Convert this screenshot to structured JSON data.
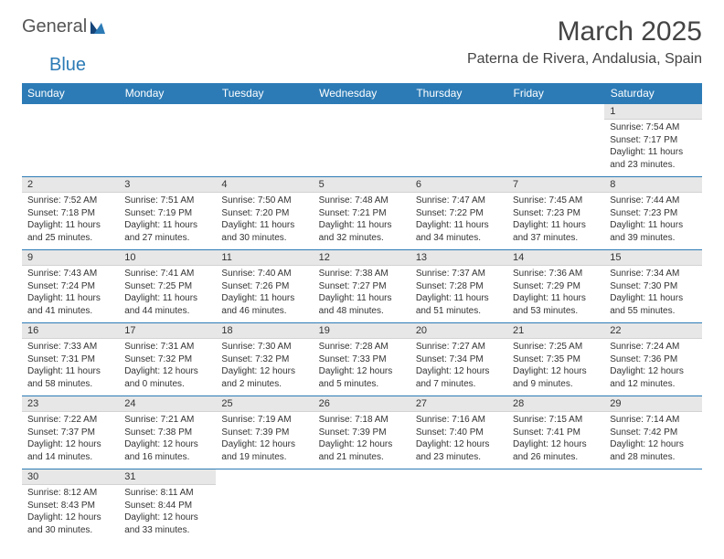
{
  "brand": {
    "name1": "General",
    "name2": "Blue"
  },
  "header": {
    "month_title": "March 2025",
    "location": "Paterna de Rivera, Andalusia, Spain"
  },
  "colors": {
    "header_bg": "#2c7bb6",
    "header_fg": "#ffffff",
    "daynum_bg": "#e7e7e7",
    "cell_border": "#2c7bb6"
  },
  "day_headers": [
    "Sunday",
    "Monday",
    "Tuesday",
    "Wednesday",
    "Thursday",
    "Friday",
    "Saturday"
  ],
  "weeks": [
    [
      null,
      null,
      null,
      null,
      null,
      null,
      {
        "n": "1",
        "sr": "Sunrise: 7:54 AM",
        "ss": "Sunset: 7:17 PM",
        "dl1": "Daylight: 11 hours",
        "dl2": "and 23 minutes."
      }
    ],
    [
      {
        "n": "2",
        "sr": "Sunrise: 7:52 AM",
        "ss": "Sunset: 7:18 PM",
        "dl1": "Daylight: 11 hours",
        "dl2": "and 25 minutes."
      },
      {
        "n": "3",
        "sr": "Sunrise: 7:51 AM",
        "ss": "Sunset: 7:19 PM",
        "dl1": "Daylight: 11 hours",
        "dl2": "and 27 minutes."
      },
      {
        "n": "4",
        "sr": "Sunrise: 7:50 AM",
        "ss": "Sunset: 7:20 PM",
        "dl1": "Daylight: 11 hours",
        "dl2": "and 30 minutes."
      },
      {
        "n": "5",
        "sr": "Sunrise: 7:48 AM",
        "ss": "Sunset: 7:21 PM",
        "dl1": "Daylight: 11 hours",
        "dl2": "and 32 minutes."
      },
      {
        "n": "6",
        "sr": "Sunrise: 7:47 AM",
        "ss": "Sunset: 7:22 PM",
        "dl1": "Daylight: 11 hours",
        "dl2": "and 34 minutes."
      },
      {
        "n": "7",
        "sr": "Sunrise: 7:45 AM",
        "ss": "Sunset: 7:23 PM",
        "dl1": "Daylight: 11 hours",
        "dl2": "and 37 minutes."
      },
      {
        "n": "8",
        "sr": "Sunrise: 7:44 AM",
        "ss": "Sunset: 7:23 PM",
        "dl1": "Daylight: 11 hours",
        "dl2": "and 39 minutes."
      }
    ],
    [
      {
        "n": "9",
        "sr": "Sunrise: 7:43 AM",
        "ss": "Sunset: 7:24 PM",
        "dl1": "Daylight: 11 hours",
        "dl2": "and 41 minutes."
      },
      {
        "n": "10",
        "sr": "Sunrise: 7:41 AM",
        "ss": "Sunset: 7:25 PM",
        "dl1": "Daylight: 11 hours",
        "dl2": "and 44 minutes."
      },
      {
        "n": "11",
        "sr": "Sunrise: 7:40 AM",
        "ss": "Sunset: 7:26 PM",
        "dl1": "Daylight: 11 hours",
        "dl2": "and 46 minutes."
      },
      {
        "n": "12",
        "sr": "Sunrise: 7:38 AM",
        "ss": "Sunset: 7:27 PM",
        "dl1": "Daylight: 11 hours",
        "dl2": "and 48 minutes."
      },
      {
        "n": "13",
        "sr": "Sunrise: 7:37 AM",
        "ss": "Sunset: 7:28 PM",
        "dl1": "Daylight: 11 hours",
        "dl2": "and 51 minutes."
      },
      {
        "n": "14",
        "sr": "Sunrise: 7:36 AM",
        "ss": "Sunset: 7:29 PM",
        "dl1": "Daylight: 11 hours",
        "dl2": "and 53 minutes."
      },
      {
        "n": "15",
        "sr": "Sunrise: 7:34 AM",
        "ss": "Sunset: 7:30 PM",
        "dl1": "Daylight: 11 hours",
        "dl2": "and 55 minutes."
      }
    ],
    [
      {
        "n": "16",
        "sr": "Sunrise: 7:33 AM",
        "ss": "Sunset: 7:31 PM",
        "dl1": "Daylight: 11 hours",
        "dl2": "and 58 minutes."
      },
      {
        "n": "17",
        "sr": "Sunrise: 7:31 AM",
        "ss": "Sunset: 7:32 PM",
        "dl1": "Daylight: 12 hours",
        "dl2": "and 0 minutes."
      },
      {
        "n": "18",
        "sr": "Sunrise: 7:30 AM",
        "ss": "Sunset: 7:32 PM",
        "dl1": "Daylight: 12 hours",
        "dl2": "and 2 minutes."
      },
      {
        "n": "19",
        "sr": "Sunrise: 7:28 AM",
        "ss": "Sunset: 7:33 PM",
        "dl1": "Daylight: 12 hours",
        "dl2": "and 5 minutes."
      },
      {
        "n": "20",
        "sr": "Sunrise: 7:27 AM",
        "ss": "Sunset: 7:34 PM",
        "dl1": "Daylight: 12 hours",
        "dl2": "and 7 minutes."
      },
      {
        "n": "21",
        "sr": "Sunrise: 7:25 AM",
        "ss": "Sunset: 7:35 PM",
        "dl1": "Daylight: 12 hours",
        "dl2": "and 9 minutes."
      },
      {
        "n": "22",
        "sr": "Sunrise: 7:24 AM",
        "ss": "Sunset: 7:36 PM",
        "dl1": "Daylight: 12 hours",
        "dl2": "and 12 minutes."
      }
    ],
    [
      {
        "n": "23",
        "sr": "Sunrise: 7:22 AM",
        "ss": "Sunset: 7:37 PM",
        "dl1": "Daylight: 12 hours",
        "dl2": "and 14 minutes."
      },
      {
        "n": "24",
        "sr": "Sunrise: 7:21 AM",
        "ss": "Sunset: 7:38 PM",
        "dl1": "Daylight: 12 hours",
        "dl2": "and 16 minutes."
      },
      {
        "n": "25",
        "sr": "Sunrise: 7:19 AM",
        "ss": "Sunset: 7:39 PM",
        "dl1": "Daylight: 12 hours",
        "dl2": "and 19 minutes."
      },
      {
        "n": "26",
        "sr": "Sunrise: 7:18 AM",
        "ss": "Sunset: 7:39 PM",
        "dl1": "Daylight: 12 hours",
        "dl2": "and 21 minutes."
      },
      {
        "n": "27",
        "sr": "Sunrise: 7:16 AM",
        "ss": "Sunset: 7:40 PM",
        "dl1": "Daylight: 12 hours",
        "dl2": "and 23 minutes."
      },
      {
        "n": "28",
        "sr": "Sunrise: 7:15 AM",
        "ss": "Sunset: 7:41 PM",
        "dl1": "Daylight: 12 hours",
        "dl2": "and 26 minutes."
      },
      {
        "n": "29",
        "sr": "Sunrise: 7:14 AM",
        "ss": "Sunset: 7:42 PM",
        "dl1": "Daylight: 12 hours",
        "dl2": "and 28 minutes."
      }
    ],
    [
      {
        "n": "30",
        "sr": "Sunrise: 8:12 AM",
        "ss": "Sunset: 8:43 PM",
        "dl1": "Daylight: 12 hours",
        "dl2": "and 30 minutes."
      },
      {
        "n": "31",
        "sr": "Sunrise: 8:11 AM",
        "ss": "Sunset: 8:44 PM",
        "dl1": "Daylight: 12 hours",
        "dl2": "and 33 minutes."
      },
      null,
      null,
      null,
      null,
      null
    ]
  ]
}
